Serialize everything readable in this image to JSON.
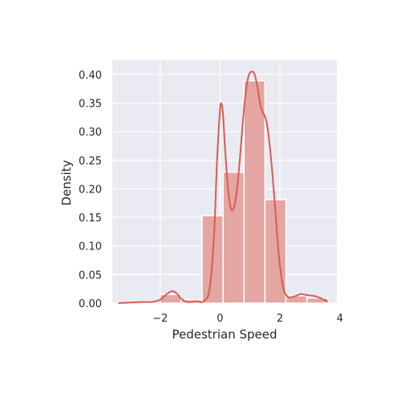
{
  "chart_data": {
    "type": "bar",
    "xlabel": "Pedestrian Speed",
    "ylabel": "Density",
    "xlim": [
      -3.6,
      3.9
    ],
    "ylim": [
      0,
      0.425
    ],
    "xticks": [
      -2,
      0,
      2,
      4
    ],
    "xtick_labels": [
      "−2",
      "0",
      "2",
      "4"
    ],
    "yticks": [
      0,
      0.05,
      0.1,
      0.15,
      0.2,
      0.25,
      0.3,
      0.35,
      0.4
    ],
    "ytick_labels": [
      "0.00",
      "0.05",
      "0.10",
      "0.15",
      "0.20",
      "0.25",
      "0.30",
      "0.35",
      "0.40"
    ],
    "grid": true,
    "histogram": {
      "bin_edges": [
        -3.4,
        -2.7,
        -2.0,
        -1.3,
        -0.6,
        0.1,
        0.8,
        1.5,
        2.2,
        2.9,
        3.6
      ],
      "values": [
        0.0,
        0.0,
        0.015,
        0.006,
        0.153,
        0.229,
        0.389,
        0.181,
        0.013,
        0.009
      ]
    },
    "kde": {
      "x": [
        -3.4,
        -3.0,
        -2.6,
        -2.3,
        -2.0,
        -1.8,
        -1.6,
        -1.45,
        -1.3,
        -1.1,
        -0.8,
        -0.55,
        -0.35,
        -0.2,
        -0.1,
        0.0,
        0.05,
        0.1,
        0.15,
        0.25,
        0.35,
        0.45,
        0.55,
        0.65,
        0.75,
        0.85,
        0.95,
        1.05,
        1.15,
        1.25,
        1.35,
        1.45,
        1.55,
        1.65,
        1.75,
        1.85,
        1.95,
        2.05,
        2.15,
        2.3,
        2.5,
        2.7,
        2.9,
        3.1,
        3.3,
        3.5,
        3.6
      ],
      "y": [
        0.0,
        0.001,
        0.002,
        0.002,
        0.006,
        0.015,
        0.021,
        0.017,
        0.008,
        0.002,
        0.003,
        0.003,
        0.025,
        0.12,
        0.25,
        0.338,
        0.348,
        0.33,
        0.285,
        0.21,
        0.168,
        0.165,
        0.192,
        0.245,
        0.31,
        0.365,
        0.397,
        0.405,
        0.4,
        0.378,
        0.345,
        0.332,
        0.318,
        0.28,
        0.225,
        0.16,
        0.09,
        0.045,
        0.02,
        0.01,
        0.012,
        0.016,
        0.014,
        0.013,
        0.01,
        0.005,
        0.003
      ]
    },
    "colors": {
      "bar_fill": "#e3a6a3",
      "bar_edge": "#ffffff",
      "kde_line": "#d95b51",
      "plot_bg": "#eaeaf2",
      "grid": "#ffffff"
    }
  }
}
